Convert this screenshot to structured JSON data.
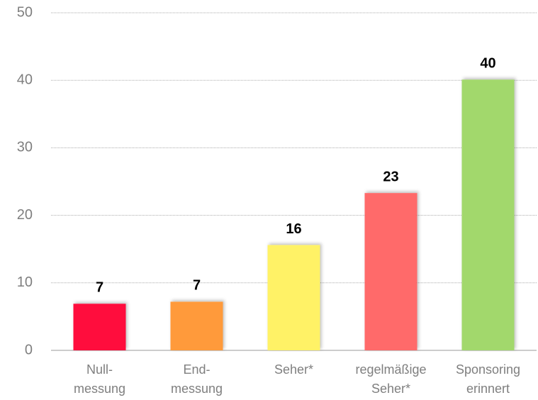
{
  "chart_data": {
    "type": "bar",
    "categories": [
      [
        "Null-",
        "messung"
      ],
      [
        "End-",
        "messung"
      ],
      [
        "Seher*"
      ],
      [
        "regelmäßige",
        "Seher*"
      ],
      [
        "Sponsoring",
        "erinnert"
      ]
    ],
    "values": [
      6.9,
      7.2,
      15.6,
      23.3,
      40.1
    ],
    "value_labels": [
      "7",
      "7",
      "16",
      "23",
      "40"
    ],
    "colors": [
      "#ff0a3c",
      "#ff9a3a",
      "#fff266",
      "#ff6b6b",
      "#a2d86c"
    ],
    "ylim": [
      0,
      50
    ],
    "yticks": [
      0,
      10,
      20,
      30,
      40,
      50
    ],
    "grid": true
  }
}
